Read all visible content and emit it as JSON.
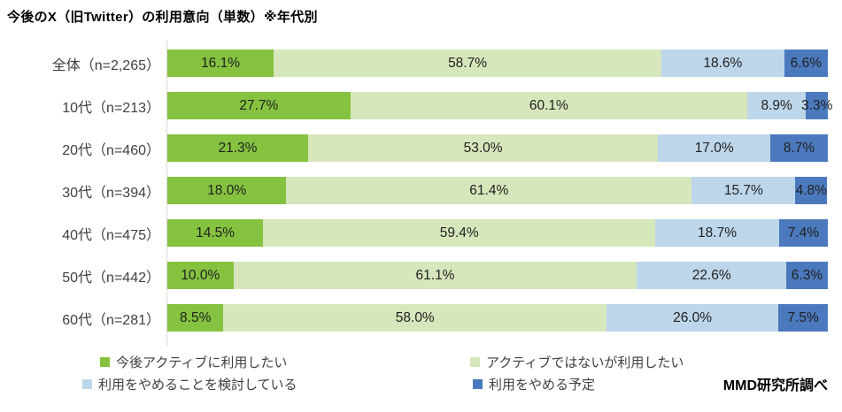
{
  "title": "今後のX（旧Twitter）の利用意向（単数）※年代別",
  "source": "MMD研究所調べ",
  "colors": {
    "series_active": "#85C23F",
    "series_not_active": "#D6E7BC",
    "series_considering": "#BDD6EA",
    "series_quit": "#4B79BD",
    "axis_line": "#d9d9d9",
    "label_text": "#404040",
    "value_text": "#212121"
  },
  "chart_data": {
    "type": "bar",
    "orientation": "horizontal-stacked",
    "title": "今後のX（旧Twitter）の利用意向（単数）※年代別",
    "categories": [
      "全体（n=2,265）",
      "10代（n=213）",
      "20代（n=460）",
      "30代（n=394）",
      "40代（n=475）",
      "50代（n=442）",
      "60代（n=281）"
    ],
    "series": [
      {
        "name": "今後アクティブに利用したい",
        "color": "#85C23F",
        "values": [
          16.1,
          27.7,
          21.3,
          18.0,
          14.5,
          10.0,
          8.5
        ]
      },
      {
        "name": "アクティブではないが利用したい",
        "color": "#D6E7BC",
        "values": [
          58.7,
          60.1,
          53.0,
          61.4,
          59.4,
          61.1,
          58.0
        ]
      },
      {
        "name": "利用をやめることを検討している",
        "color": "#BDD6EA",
        "values": [
          18.6,
          8.9,
          17.0,
          15.7,
          18.7,
          22.6,
          26.0
        ]
      },
      {
        "name": "利用をやめる予定",
        "color": "#4B79BD",
        "values": [
          6.6,
          3.3,
          8.7,
          4.8,
          7.4,
          6.3,
          7.5
        ]
      }
    ],
    "value_suffix": "%",
    "xlim": [
      0,
      100
    ],
    "grid": false,
    "legend_position": "bottom"
  }
}
